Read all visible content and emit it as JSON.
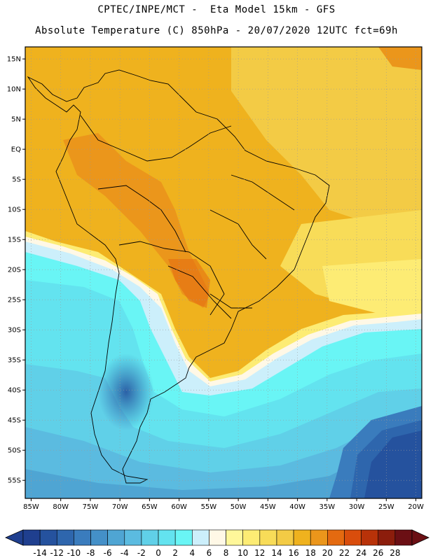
{
  "header": {
    "title_line1": "CPTEC/INPE/MCT -  Eta Model 15km - GFS",
    "title_line2": "Absolute Temperature (C) 850hPa - 20/07/2020 12UTC fct=69h"
  },
  "map": {
    "lon_labels": [
      "85W",
      "80W",
      "75W",
      "70W",
      "65W",
      "60W",
      "55W",
      "50W",
      "45W",
      "40W",
      "35W",
      "30W",
      "25W",
      "20W"
    ],
    "lat_labels": [
      "15N",
      "10N",
      "5N",
      "EQ",
      "5S",
      "10S",
      "15S",
      "20S",
      "25S",
      "30S",
      "35S",
      "40S",
      "45S",
      "50S",
      "55S"
    ],
    "lon_range": [
      -86,
      -19
    ],
    "lat_range": [
      17,
      -58
    ]
  },
  "colorbar": {
    "labels": [
      "-14",
      "-12",
      "-10",
      "-8",
      "-6",
      "-4",
      "-2",
      "0",
      "2",
      "4",
      "6",
      "8",
      "10",
      "12",
      "14",
      "16",
      "18",
      "20",
      "22",
      "24",
      "26",
      "28"
    ],
    "colors": [
      "#1f3f8f",
      "#25529e",
      "#2e66ad",
      "#3a7cbd",
      "#4490c8",
      "#4fa5d3",
      "#5bbbe0",
      "#60d0e8",
      "#63e3ef",
      "#69f5f5",
      "#cceffb",
      "#fff8e6",
      "#fff79a",
      "#fdec74",
      "#f8dc58",
      "#f3cb45",
      "#efb21e",
      "#eb961b",
      "#e46a10",
      "#d94d0c",
      "#b83209",
      "#8c1d0c",
      "#6b0f14"
    ]
  }
}
